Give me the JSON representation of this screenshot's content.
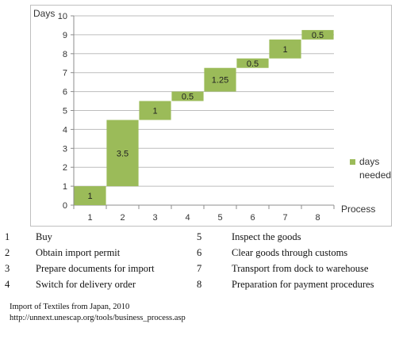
{
  "chart_data": {
    "type": "bar",
    "subtype": "waterfall",
    "title": "",
    "xlabel": "Process",
    "ylabel": "Days",
    "categories": [
      "1",
      "2",
      "3",
      "4",
      "5",
      "6",
      "7",
      "8"
    ],
    "series": [
      {
        "name": "days needed",
        "values": [
          1,
          3.5,
          1,
          0.5,
          1.25,
          0.5,
          1,
          0.5
        ],
        "color": "#9bbb59"
      }
    ],
    "data_labels": [
      "1",
      "3.5",
      "1",
      "0.5",
      "1.25",
      "0.5",
      "1",
      "0.5"
    ],
    "ylim": [
      0,
      10
    ],
    "yticks": [
      "0",
      "1",
      "2",
      "3",
      "4",
      "5",
      "6",
      "7",
      "8",
      "9",
      "10"
    ],
    "grid": true,
    "legend_position": "right"
  },
  "processes": [
    {
      "num": "1",
      "name": "Buy"
    },
    {
      "num": "2",
      "name": "Obtain import permit"
    },
    {
      "num": "3",
      "name": "Prepare documents for import"
    },
    {
      "num": "4",
      "name": "Switch for delivery order"
    },
    {
      "num": "5",
      "name": "Inspect the goods"
    },
    {
      "num": "6",
      "name": "Clear goods through customs"
    },
    {
      "num": "7",
      "name": "Transport from dock to warehouse"
    },
    {
      "num": "8",
      "name": "Preparation for payment procedures"
    }
  ],
  "source": {
    "line1": "Import of Textiles from Japan, 2010",
    "line2": "http://unnext.unescap.org/tools/business_process.asp"
  }
}
